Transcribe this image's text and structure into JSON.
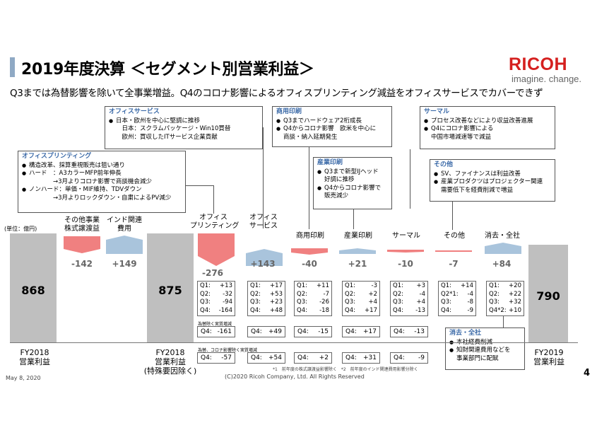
{
  "header": {
    "title": "2019年度決算 ＜セグメント別営業利益＞",
    "logo": "RICOH",
    "tagline": "imagine. change.",
    "subtitle": "Q3までは為替影響を除いて全事業増益。Q4のコロナ影響によるオフィスプリンティング減益をオフィスサービスでカバーできず"
  },
  "unit_label": "(単位：億円)",
  "callouts": {
    "office_printing": {
      "title": "オフィスプリンティング",
      "lines": [
        {
          "t": "b",
          "text": "構造改革、採算重視販売は狙い通り"
        },
        {
          "t": "b",
          "text": "ハード　：A3カラーMFP前年伸長"
        },
        {
          "t": "i",
          "text": "　　　　→3月よりコロナ影響で商談機会減少"
        },
        {
          "t": "b",
          "text": "ノンハード：単価・MIF維持、TDVダウン"
        },
        {
          "t": "i",
          "text": "　　　　→3月よりロックダウン・自粛によるPV減少"
        }
      ]
    },
    "office_services": {
      "title": "オフィスサービス",
      "lines": [
        {
          "t": "b",
          "text": "日本・欧州を中心に堅調に推移"
        },
        {
          "t": "i",
          "text": "　日本：スクラムパッケージ・Win10買替"
        },
        {
          "t": "i",
          "text": "　欧州：買収したITサービス企業貢献"
        }
      ]
    },
    "commercial_printing": {
      "title": "商用印刷",
      "lines": [
        {
          "t": "b",
          "text": "Q3までハードウェア2桁成長"
        },
        {
          "t": "b",
          "text": "Q4からコロナ影響　欧米を中心に"
        },
        {
          "t": "i",
          "text": "商談・納入延期発生"
        }
      ]
    },
    "industrial_printing": {
      "title": "産業印刷",
      "lines": [
        {
          "t": "b",
          "text": "Q3まで新型IJヘッド"
        },
        {
          "t": "i",
          "text": "好調に推移"
        },
        {
          "t": "b",
          "text": "Q4からコロナ影響で"
        },
        {
          "t": "i",
          "text": "販売減少"
        }
      ]
    },
    "thermal": {
      "title": "サーマル",
      "lines": [
        {
          "t": "b",
          "text": "プロセス改善などにより収益改善進展"
        },
        {
          "t": "b",
          "text": "Q4にコロナ影響による"
        },
        {
          "t": "i",
          "text": "中国市場減速等で減益"
        }
      ]
    },
    "other": {
      "title": "その他",
      "lines": [
        {
          "t": "b",
          "text": "SV、ファイナンスは利益改善"
        },
        {
          "t": "b",
          "text": "産業プロダクツはプロジェクター関連"
        },
        {
          "t": "i",
          "text": "需要低下を経費削減で増益"
        }
      ]
    },
    "corporate": {
      "title": "消去・全社",
      "lines": [
        {
          "t": "b",
          "text": "本社経費削減"
        },
        {
          "t": "b",
          "text": "知財関連費用などを"
        },
        {
          "t": "i",
          "text": "事業部門に配賦"
        }
      ]
    }
  },
  "bars": {
    "fy2018": {
      "value": "868",
      "label": "FY2018\n営業利益"
    },
    "fy2018_adj": {
      "value": "875",
      "label": "FY2018\n営業利益\n(特殊要因除く)"
    },
    "fy2019": {
      "value": "790",
      "label": "FY2019\n営業利益"
    },
    "other_business": {
      "label": "その他事業\n株式譲渡益",
      "delta": "-142"
    },
    "india": {
      "label": "インド関連\n費用",
      "delta": "+149"
    }
  },
  "segments": [
    {
      "label": "オフィス\nプリンティング",
      "delta": "-276",
      "q": [
        [
          "Q1:",
          "+13"
        ],
        [
          "Q2:",
          "-32"
        ],
        [
          "Q3:",
          "-94"
        ],
        [
          "Q4:",
          "-164"
        ]
      ],
      "q4fx": "-161",
      "q4corona": "-57"
    },
    {
      "label": "オフィス\nサービス",
      "delta": "+143",
      "q": [
        [
          "Q1:",
          "+17"
        ],
        [
          "Q2:",
          "+53"
        ],
        [
          "Q3:",
          "+23"
        ],
        [
          "Q4:",
          "+48"
        ]
      ],
      "q4fx": "+49",
      "q4corona": "+54"
    },
    {
      "label": "商用印刷",
      "delta": "-40",
      "q": [
        [
          "Q1:",
          "+11"
        ],
        [
          "Q2:",
          "-7"
        ],
        [
          "Q3:",
          "-26"
        ],
        [
          "Q4:",
          "-18"
        ]
      ],
      "q4fx": "-15",
      "q4corona": "+2"
    },
    {
      "label": "産業印刷",
      "delta": "+21",
      "q": [
        [
          "Q1:",
          "-3"
        ],
        [
          "Q2:",
          "+2"
        ],
        [
          "Q3:",
          "+4"
        ],
        [
          "Q4:",
          "+17"
        ]
      ],
      "q4fx": "+17",
      "q4corona": "+31"
    },
    {
      "label": "サーマル",
      "delta": "-10",
      "q": [
        [
          "Q1:",
          "+3"
        ],
        [
          "Q2:",
          "-4"
        ],
        [
          "Q3:",
          "+4"
        ],
        [
          "Q4:",
          "-13"
        ]
      ],
      "q4fx": "-13",
      "q4corona": "-9"
    },
    {
      "label": "その他",
      "delta": "-7",
      "q": [
        [
          "Q1:",
          "+14"
        ],
        [
          "Q2*1:",
          "-4"
        ],
        [
          "Q3:",
          "-8"
        ],
        [
          "Q4:",
          "-9"
        ]
      ]
    },
    {
      "label": "消去・全社",
      "delta": "+84",
      "q": [
        [
          "Q1:",
          "+20"
        ],
        [
          "Q2:",
          "+22"
        ],
        [
          "Q3:",
          "+32"
        ],
        [
          "Q4*2:",
          "+10"
        ]
      ]
    }
  ],
  "row_labels": {
    "fx": "為替除く実質増減",
    "corona": "為替、コロナ影響除く実質増減"
  },
  "q4_prefix": "Q4:",
  "footnotes": "*1　前年度の株式譲渡益影響除く　*2　前年度のインド関連費用影響分除く",
  "footer": {
    "date": "May 8, 2020",
    "copyright": "(C)2020 Ricoh Company, Ltd. All Rights Reserved",
    "page": "4"
  },
  "colors": {
    "negative": "#f08080",
    "positive": "#a9c4dc",
    "total": "#bfbfbf",
    "accent": "#3b6aa8",
    "brand": "#d5201f"
  }
}
